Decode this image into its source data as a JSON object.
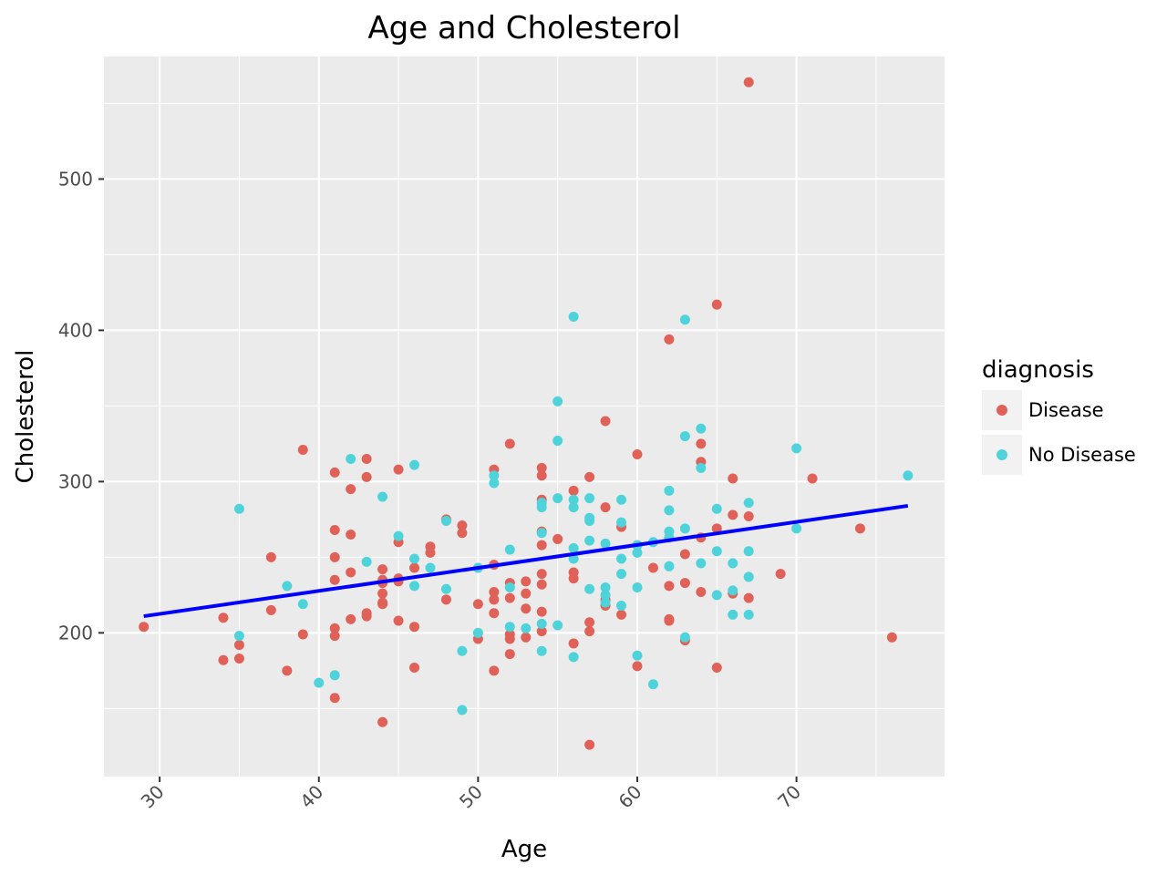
{
  "chart_data": {
    "type": "scatter",
    "title": "Age and Cholesterol",
    "xlabel": "Age",
    "ylabel": "Cholesterol",
    "xlim": [
      26.5,
      79.3
    ],
    "ylim": [
      105,
      581
    ],
    "x_ticks": [
      30,
      40,
      50,
      60,
      70
    ],
    "y_ticks": [
      200,
      300,
      400,
      500
    ],
    "x_tick_labels": [
      "30",
      "40",
      "50",
      "60",
      "70"
    ],
    "y_tick_labels": [
      "200",
      "300",
      "400",
      "500"
    ],
    "x_tick_rotation": -45,
    "grid": true,
    "legend": {
      "title": "diagnosis",
      "position": "right",
      "entries": [
        "Disease",
        "No Disease"
      ]
    },
    "colors": {
      "Disease": "#E06158",
      "No Disease": "#4FD3DB",
      "trend": "#0000FF",
      "panel": "#EBEBEB",
      "grid": "#FFFFFF"
    },
    "trend_line": {
      "x": [
        29,
        77
      ],
      "y": [
        211,
        284
      ]
    },
    "series": [
      {
        "name": "Disease",
        "points": [
          [
            29,
            204
          ],
          [
            34,
            210
          ],
          [
            34,
            182
          ],
          [
            35,
            192
          ],
          [
            35,
            183
          ],
          [
            37,
            250
          ],
          [
            37,
            215
          ],
          [
            38,
            175
          ],
          [
            39,
            321
          ],
          [
            39,
            199
          ],
          [
            41,
            306
          ],
          [
            41,
            268
          ],
          [
            41,
            250
          ],
          [
            41,
            235
          ],
          [
            41,
            203
          ],
          [
            41,
            198
          ],
          [
            41,
            157
          ],
          [
            42,
            295
          ],
          [
            42,
            265
          ],
          [
            42,
            240
          ],
          [
            42,
            209
          ],
          [
            43,
            315
          ],
          [
            43,
            303
          ],
          [
            43,
            213
          ],
          [
            43,
            211
          ],
          [
            44,
            242
          ],
          [
            44,
            235
          ],
          [
            44,
            233
          ],
          [
            44,
            226
          ],
          [
            44,
            220
          ],
          [
            44,
            219
          ],
          [
            44,
            141
          ],
          [
            45,
            308
          ],
          [
            45,
            260
          ],
          [
            45,
            236
          ],
          [
            45,
            234
          ],
          [
            45,
            208
          ],
          [
            46,
            243
          ],
          [
            46,
            204
          ],
          [
            46,
            177
          ],
          [
            47,
            257
          ],
          [
            47,
            253
          ],
          [
            48,
            275
          ],
          [
            48,
            222
          ],
          [
            49,
            271
          ],
          [
            49,
            266
          ],
          [
            50,
            219
          ],
          [
            50,
            196
          ],
          [
            51,
            308
          ],
          [
            51,
            245
          ],
          [
            51,
            227
          ],
          [
            51,
            222
          ],
          [
            51,
            213
          ],
          [
            51,
            175
          ],
          [
            52,
            325
          ],
          [
            52,
            233
          ],
          [
            52,
            223
          ],
          [
            52,
            199
          ],
          [
            52,
            196
          ],
          [
            52,
            186
          ],
          [
            53,
            234
          ],
          [
            53,
            226
          ],
          [
            53,
            216
          ],
          [
            53,
            197
          ],
          [
            54,
            309
          ],
          [
            54,
            304
          ],
          [
            54,
            288
          ],
          [
            54,
            267
          ],
          [
            54,
            258
          ],
          [
            54,
            239
          ],
          [
            54,
            232
          ],
          [
            54,
            214
          ],
          [
            54,
            201
          ],
          [
            55,
            262
          ],
          [
            56,
            294
          ],
          [
            56,
            240
          ],
          [
            56,
            236
          ],
          [
            56,
            193
          ],
          [
            57,
            303
          ],
          [
            57,
            207
          ],
          [
            57,
            201
          ],
          [
            57,
            126
          ],
          [
            58,
            340
          ],
          [
            58,
            283
          ],
          [
            58,
            222
          ],
          [
            58,
            218
          ],
          [
            59,
            270
          ],
          [
            59,
            212
          ],
          [
            60,
            318
          ],
          [
            60,
            258
          ],
          [
            60,
            178
          ],
          [
            61,
            243
          ],
          [
            62,
            394
          ],
          [
            62,
            231
          ],
          [
            62,
            209
          ],
          [
            62,
            208
          ],
          [
            63,
            252
          ],
          [
            63,
            233
          ],
          [
            63,
            195
          ],
          [
            64,
            325
          ],
          [
            64,
            313
          ],
          [
            64,
            227
          ],
          [
            64,
            263
          ],
          [
            65,
            417
          ],
          [
            65,
            269
          ],
          [
            65,
            177
          ],
          [
            66,
            302
          ],
          [
            66,
            278
          ],
          [
            66,
            226
          ],
          [
            67,
            564
          ],
          [
            67,
            277
          ],
          [
            67,
            223
          ],
          [
            69,
            239
          ],
          [
            71,
            302
          ],
          [
            74,
            269
          ],
          [
            76,
            197
          ]
        ]
      },
      {
        "name": "No Disease",
        "points": [
          [
            35,
            282
          ],
          [
            35,
            198
          ],
          [
            38,
            231
          ],
          [
            39,
            219
          ],
          [
            40,
            167
          ],
          [
            41,
            172
          ],
          [
            42,
            315
          ],
          [
            43,
            247
          ],
          [
            44,
            290
          ],
          [
            45,
            264
          ],
          [
            46,
            311
          ],
          [
            46,
            249
          ],
          [
            46,
            231
          ],
          [
            47,
            243
          ],
          [
            48,
            274
          ],
          [
            48,
            229
          ],
          [
            49,
            188
          ],
          [
            49,
            149
          ],
          [
            50,
            243
          ],
          [
            50,
            200
          ],
          [
            51,
            304
          ],
          [
            51,
            299
          ],
          [
            52,
            255
          ],
          [
            52,
            230
          ],
          [
            52,
            204
          ],
          [
            53,
            203
          ],
          [
            54,
            286
          ],
          [
            54,
            283
          ],
          [
            54,
            266
          ],
          [
            54,
            206
          ],
          [
            54,
            188
          ],
          [
            55,
            353
          ],
          [
            55,
            327
          ],
          [
            55,
            289
          ],
          [
            55,
            205
          ],
          [
            56,
            409
          ],
          [
            56,
            288
          ],
          [
            56,
            283
          ],
          [
            56,
            256
          ],
          [
            56,
            249
          ],
          [
            56,
            184
          ],
          [
            57,
            289
          ],
          [
            57,
            276
          ],
          [
            57,
            274
          ],
          [
            57,
            261
          ],
          [
            57,
            229
          ],
          [
            58,
            259
          ],
          [
            58,
            230
          ],
          [
            58,
            225
          ],
          [
            58,
            220
          ],
          [
            59,
            288
          ],
          [
            59,
            273
          ],
          [
            59,
            249
          ],
          [
            59,
            239
          ],
          [
            59,
            218
          ],
          [
            60,
            258
          ],
          [
            60,
            253
          ],
          [
            60,
            230
          ],
          [
            60,
            185
          ],
          [
            61,
            260
          ],
          [
            61,
            166
          ],
          [
            62,
            294
          ],
          [
            62,
            281
          ],
          [
            62,
            267
          ],
          [
            62,
            263
          ],
          [
            62,
            244
          ],
          [
            63,
            407
          ],
          [
            63,
            330
          ],
          [
            63,
            269
          ],
          [
            63,
            197
          ],
          [
            64,
            335
          ],
          [
            64,
            309
          ],
          [
            64,
            246
          ],
          [
            65,
            282
          ],
          [
            65,
            254
          ],
          [
            65,
            225
          ],
          [
            66,
            246
          ],
          [
            66,
            228
          ],
          [
            66,
            212
          ],
          [
            67,
            286
          ],
          [
            67,
            254
          ],
          [
            67,
            237
          ],
          [
            67,
            212
          ],
          [
            70,
            322
          ],
          [
            70,
            269
          ],
          [
            77,
            304
          ]
        ]
      }
    ]
  }
}
